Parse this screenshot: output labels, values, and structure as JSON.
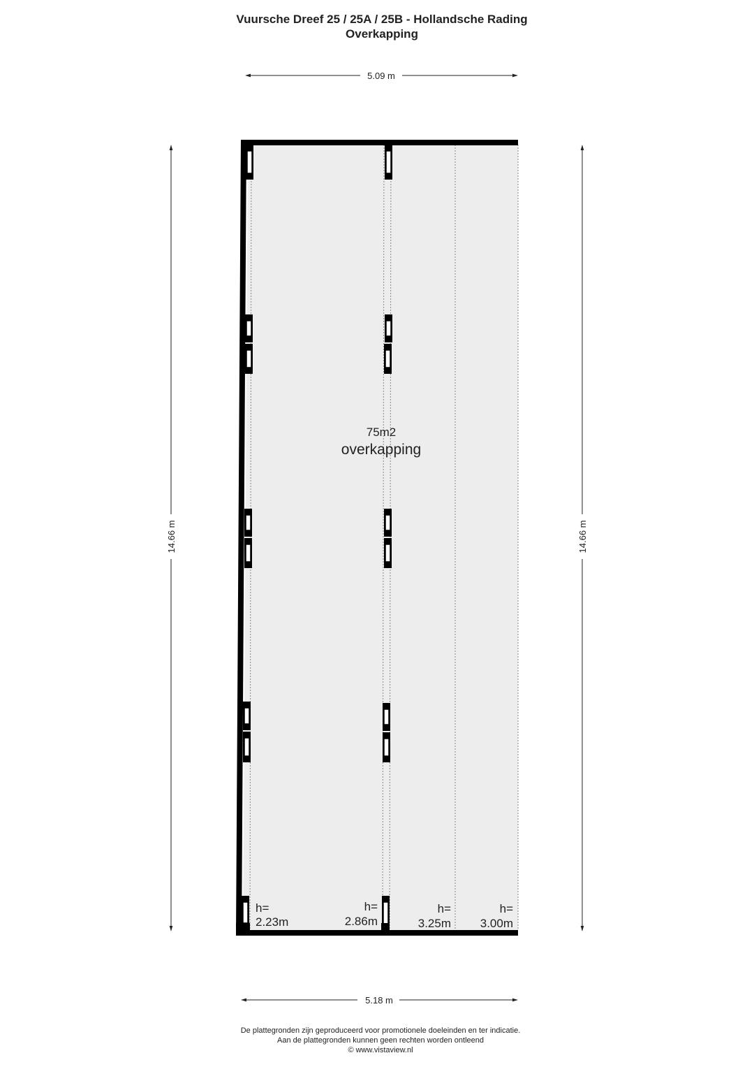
{
  "header": {
    "title": "Vuursche Dreef 25 / 25A / 25B - Hollandsche Rading",
    "subtitle": "Overkapping"
  },
  "dimensions": {
    "top_width": "5.09 m",
    "bottom_width": "5.18 m",
    "left_height": "14.66 m",
    "right_height": "14.66 m"
  },
  "room": {
    "area": "75m2",
    "name": "overkapping",
    "fill_color": "#ededed"
  },
  "heights": [
    {
      "label": "h=",
      "value": "2.23m"
    },
    {
      "label": "h=",
      "value": "2.86m"
    },
    {
      "label": "h=",
      "value": "3.25m"
    },
    {
      "label": "h=",
      "value": "3.00m"
    }
  ],
  "footer": {
    "line1": "De plattegronden zijn geproduceerd voor promotionele doeleinden en ter indicatie.",
    "line2": "Aan de plattegronden kunnen geen rechten worden ontleend",
    "line3": "© www.vistaview.nl"
  }
}
